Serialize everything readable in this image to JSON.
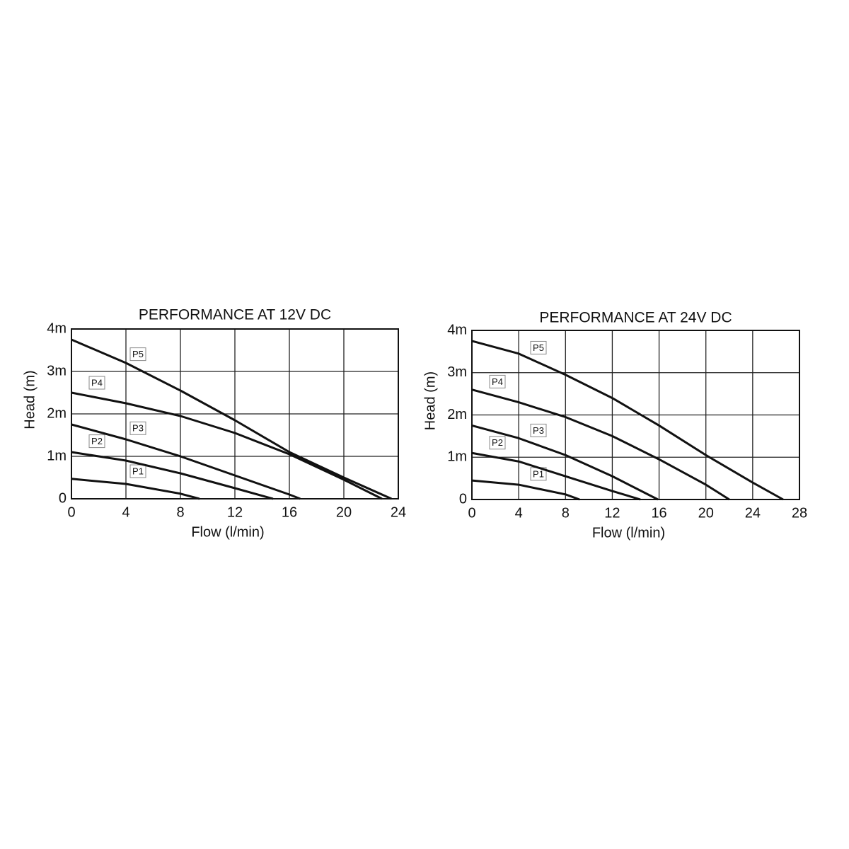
{
  "chart_data": [
    {
      "type": "line",
      "title": "PERFORMANCE AT 12V DC",
      "x_label": "Flow (l/min)",
      "y_label": "Head (m)",
      "xlim": [
        0,
        24
      ],
      "xticks": [
        0,
        4,
        8,
        12,
        16,
        20,
        24
      ],
      "ylim": [
        0,
        4
      ],
      "yticks": [
        0,
        {
          "value": 1,
          "label": "1m"
        },
        {
          "value": 2,
          "label": "2m"
        },
        {
          "value": 3,
          "label": "3m"
        },
        {
          "value": 4,
          "label": "4m"
        }
      ],
      "grid": true,
      "series": [
        {
          "name": "P1",
          "color": "#111111",
          "x": [
            0,
            4,
            8,
            9.4
          ],
          "values": [
            0.47,
            0.35,
            0.12,
            0
          ]
        },
        {
          "name": "P2",
          "color": "#111111",
          "x": [
            0,
            4,
            8,
            12,
            14.8
          ],
          "values": [
            1.1,
            0.9,
            0.6,
            0.25,
            0
          ]
        },
        {
          "name": "P3",
          "color": "#111111",
          "x": [
            0,
            4,
            8,
            12,
            16,
            16.8
          ],
          "values": [
            1.75,
            1.4,
            1.0,
            0.55,
            0.1,
            0
          ]
        },
        {
          "name": "P4",
          "color": "#111111",
          "x": [
            0,
            4,
            8,
            12,
            16,
            20,
            22.8
          ],
          "values": [
            2.5,
            2.25,
            1.95,
            1.55,
            1.05,
            0.45,
            0
          ]
        },
        {
          "name": "P5",
          "color": "#111111",
          "x": [
            0,
            4,
            8,
            12,
            16,
            20,
            23.5
          ],
          "values": [
            3.75,
            3.2,
            2.55,
            1.85,
            1.1,
            0.5,
            0
          ]
        }
      ]
    },
    {
      "type": "line",
      "title": "PERFORMANCE AT 24V DC",
      "x_label": "Flow (l/min)",
      "y_label": "Head (m)",
      "xlim": [
        0,
        28
      ],
      "xticks": [
        0,
        4,
        8,
        12,
        16,
        20,
        24,
        28
      ],
      "ylim": [
        0,
        4
      ],
      "yticks": [
        0,
        {
          "value": 1,
          "label": "1m"
        },
        {
          "value": 2,
          "label": "2m"
        },
        {
          "value": 3,
          "label": "3m"
        },
        {
          "value": 4,
          "label": "4m"
        }
      ],
      "grid": true,
      "series": [
        {
          "name": "P1",
          "color": "#111111",
          "x": [
            0,
            4,
            8,
            9.2
          ],
          "values": [
            0.45,
            0.35,
            0.12,
            0
          ]
        },
        {
          "name": "P2",
          "color": "#111111",
          "x": [
            0,
            4,
            8,
            12,
            14.4
          ],
          "values": [
            1.1,
            0.9,
            0.55,
            0.2,
            0
          ]
        },
        {
          "name": "P3",
          "color": "#111111",
          "x": [
            0,
            4,
            8,
            12,
            15.9
          ],
          "values": [
            1.75,
            1.45,
            1.05,
            0.55,
            0
          ]
        },
        {
          "name": "P4",
          "color": "#111111",
          "x": [
            0,
            4,
            8,
            12,
            16,
            20,
            22
          ],
          "values": [
            2.6,
            2.3,
            1.95,
            1.5,
            0.95,
            0.35,
            0
          ]
        },
        {
          "name": "P5",
          "color": "#111111",
          "x": [
            0,
            4,
            8,
            12,
            16,
            20,
            24,
            26.6
          ],
          "values": [
            3.75,
            3.45,
            2.95,
            2.4,
            1.75,
            1.05,
            0.4,
            0
          ]
        }
      ]
    }
  ]
}
